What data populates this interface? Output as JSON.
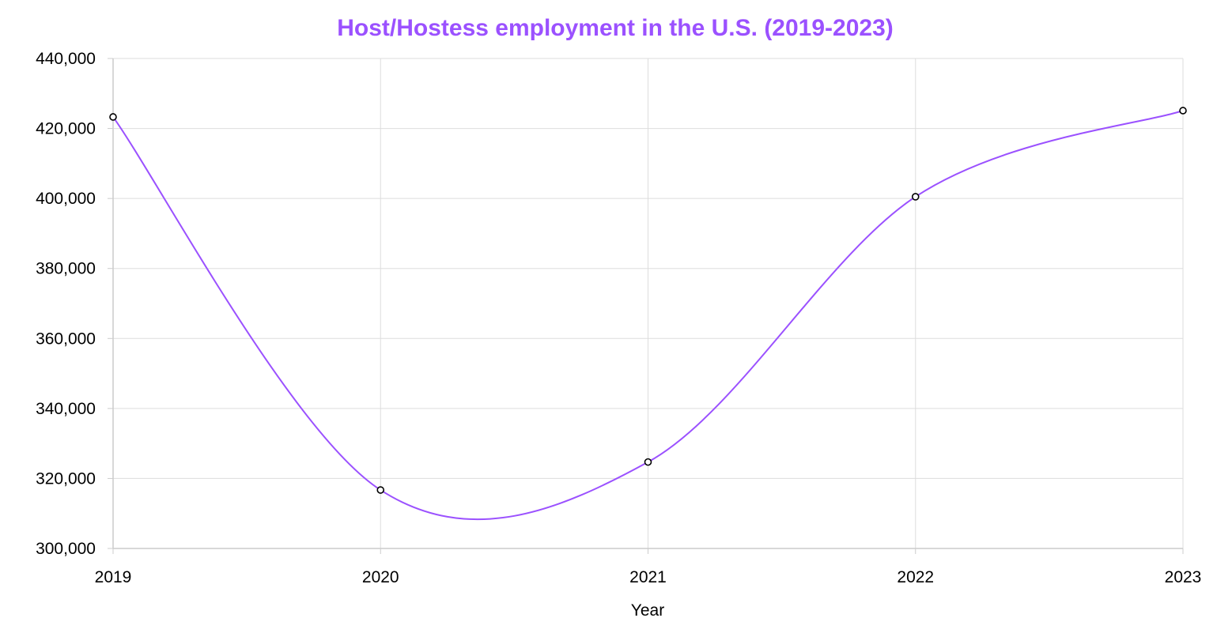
{
  "chart_data": {
    "type": "line",
    "title": "Host/Hostess employment in the U.S. (2019-2023)",
    "xlabel": "Year",
    "ylabel": "",
    "x": [
      "2019",
      "2020",
      "2021",
      "2022",
      "2023"
    ],
    "series": [
      {
        "values": [
          423300,
          316700,
          324700,
          400500,
          425100
        ]
      }
    ],
    "ylim": [
      300000,
      440000
    ],
    "yticks": [
      "300,000",
      "320,000",
      "340,000",
      "360,000",
      "380,000",
      "400,000",
      "420,000",
      "440,000"
    ],
    "grid": true,
    "legend": "none",
    "smooth": true
  },
  "colors": {
    "line": "#9b51ff",
    "title": "#9b51ff",
    "grid": "#dddddd",
    "axis": "#cccccc",
    "marker_fill": "#ffffff",
    "marker_stroke": "#000000"
  }
}
